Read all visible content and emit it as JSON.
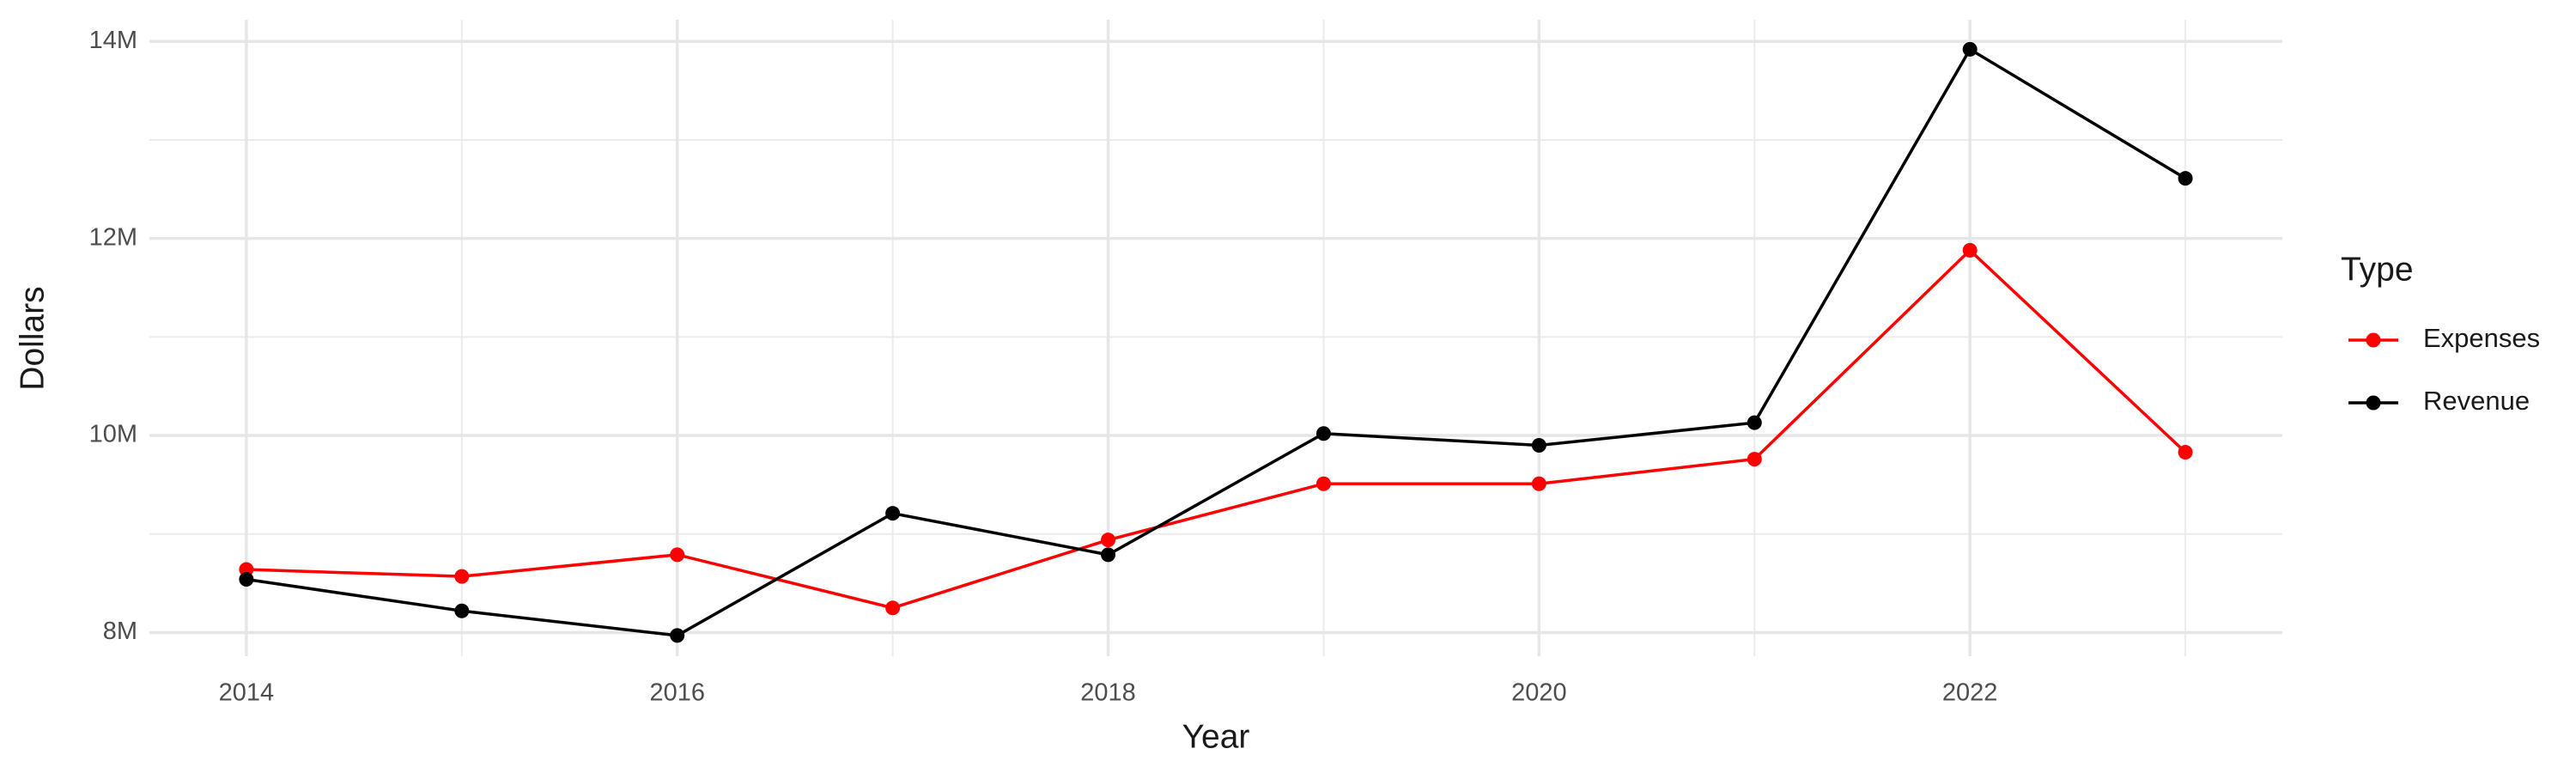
{
  "chart_data": {
    "type": "line",
    "x_label": "Year",
    "y_label": "Dollars",
    "legend_title": "Type",
    "legend_position": "right",
    "grid": true,
    "x": [
      2014,
      2015,
      2016,
      2017,
      2018,
      2019,
      2020,
      2021,
      2022,
      2023
    ],
    "xlim": [
      2013.55,
      2023.45
    ],
    "xticks": [
      2014,
      2016,
      2018,
      2020,
      2022
    ],
    "ylim": [
      7760000,
      14220000
    ],
    "yticks": [
      {
        "value": 8000000,
        "label": "8M"
      },
      {
        "value": 10000000,
        "label": "10M"
      },
      {
        "value": 12000000,
        "label": "12M"
      },
      {
        "value": 14000000,
        "label": "14M"
      }
    ],
    "series": [
      {
        "name": "Expenses",
        "color": "#ff0000",
        "values": [
          8640000,
          8570000,
          8790000,
          8250000,
          8940000,
          9510000,
          9510000,
          9760000,
          11880000,
          9830000
        ]
      },
      {
        "name": "Revenue",
        "color": "#000000",
        "values": [
          8540000,
          8220000,
          7970000,
          9210000,
          8790000,
          10020000,
          9900000,
          10130000,
          13920000,
          12610000
        ]
      }
    ]
  }
}
